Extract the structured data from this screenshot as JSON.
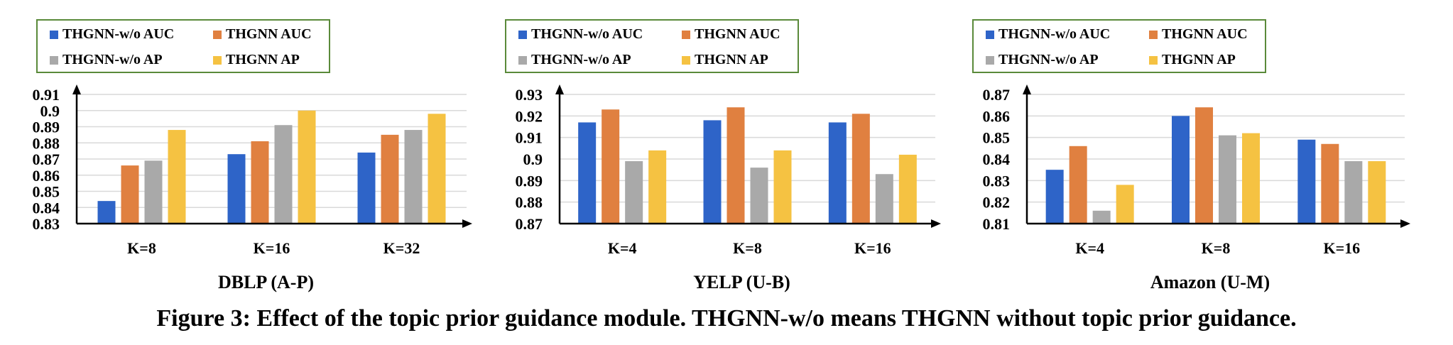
{
  "figure_caption": "Figure 3: Effect of the topic prior guidance module. THGNN-w/o means THGNN without topic prior guidance.",
  "colors": {
    "THGNN-w/o AUC": "#2e64c8",
    "THGNN AUC": "#e08040",
    "THGNN-w/o AP": "#a9a9a9",
    "THGNN AP": "#f5c242",
    "legend_border": "#5a8a3a",
    "grid": "#d9d9d9"
  },
  "chart_data": [
    {
      "type": "bar",
      "title": "DBLP (A-P)",
      "categories": [
        "K=8",
        "K=16",
        "K=32"
      ],
      "ylim": [
        0.83,
        0.91
      ],
      "yticks": [
        "0.83",
        "0.84",
        "0.85",
        "0.86",
        "0.87",
        "0.88",
        "0.89",
        "0.9",
        "0.91"
      ],
      "grid": true,
      "legend_position": "top-left",
      "series": [
        {
          "name": "THGNN-w/o AUC",
          "values": [
            0.844,
            0.873,
            0.874
          ]
        },
        {
          "name": "THGNN AUC",
          "values": [
            0.866,
            0.881,
            0.885
          ]
        },
        {
          "name": "THGNN-w/o AP",
          "values": [
            0.869,
            0.891,
            0.888
          ]
        },
        {
          "name": "THGNN AP",
          "values": [
            0.888,
            0.9,
            0.898
          ]
        }
      ]
    },
    {
      "type": "bar",
      "title": "YELP (U-B)",
      "categories": [
        "K=4",
        "K=8",
        "K=16"
      ],
      "ylim": [
        0.87,
        0.93
      ],
      "yticks": [
        "0.87",
        "0.88",
        "0.89",
        "0.9",
        "0.91",
        "0.92",
        "0.93"
      ],
      "grid": true,
      "legend_position": "top-left",
      "series": [
        {
          "name": "THGNN-w/o AUC",
          "values": [
            0.917,
            0.918,
            0.917
          ]
        },
        {
          "name": "THGNN AUC",
          "values": [
            0.923,
            0.924,
            0.921
          ]
        },
        {
          "name": "THGNN-w/o AP",
          "values": [
            0.899,
            0.896,
            0.893
          ]
        },
        {
          "name": "THGNN AP",
          "values": [
            0.904,
            0.904,
            0.902
          ]
        }
      ]
    },
    {
      "type": "bar",
      "title": "Amazon (U-M)",
      "categories": [
        "K=4",
        "K=8",
        "K=16"
      ],
      "ylim": [
        0.81,
        0.87
      ],
      "yticks": [
        "0.81",
        "0.82",
        "0.83",
        "0.84",
        "0.85",
        "0.86",
        "0.87"
      ],
      "grid": true,
      "legend_position": "top-left",
      "series": [
        {
          "name": "THGNN-w/o AUC",
          "values": [
            0.835,
            0.86,
            0.849
          ]
        },
        {
          "name": "THGNN AUC",
          "values": [
            0.846,
            0.864,
            0.847
          ]
        },
        {
          "name": "THGNN-w/o AP",
          "values": [
            0.816,
            0.851,
            0.839
          ]
        },
        {
          "name": "THGNN AP",
          "values": [
            0.828,
            0.852,
            0.839
          ]
        }
      ]
    }
  ]
}
